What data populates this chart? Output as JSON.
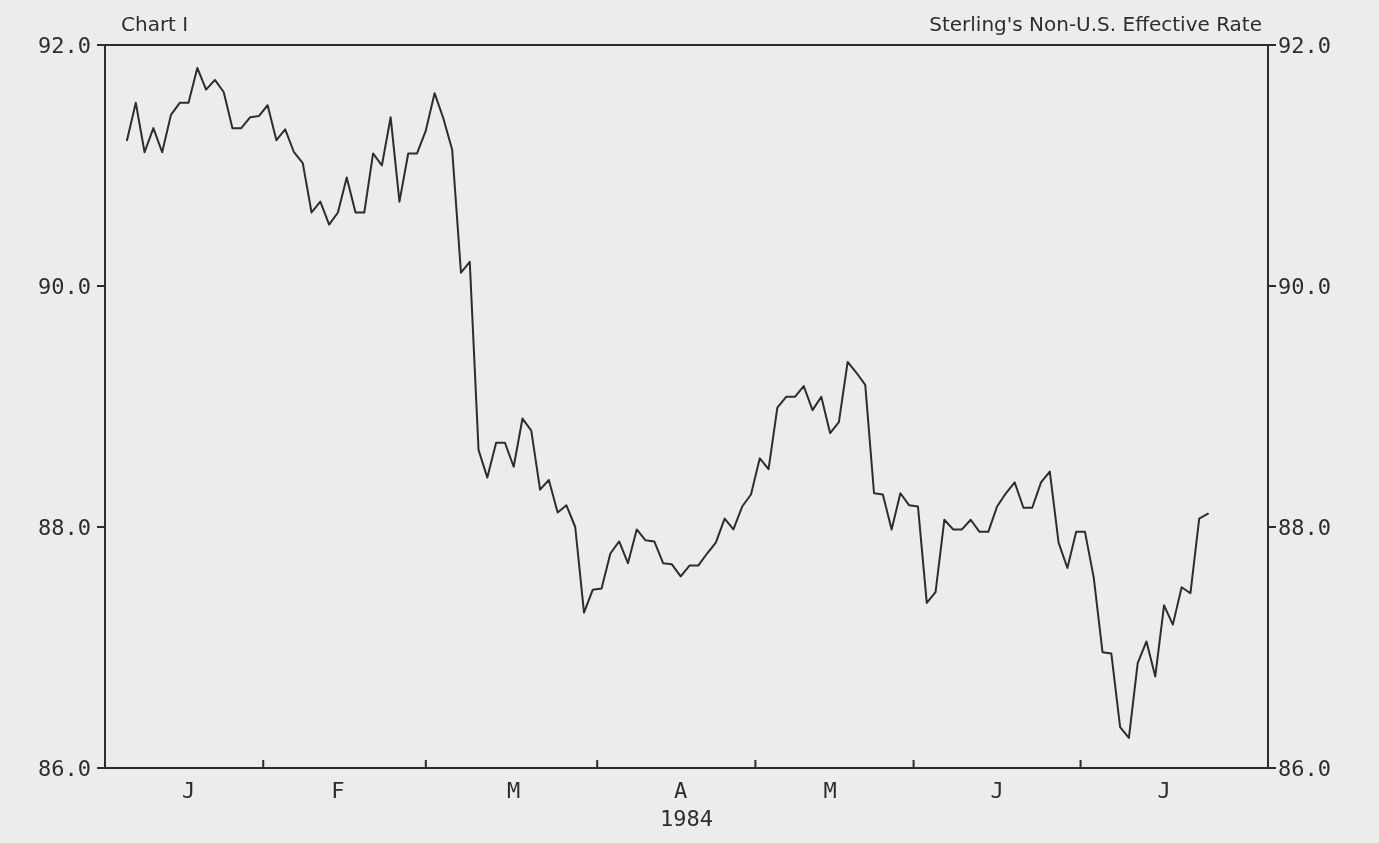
{
  "chart_data": {
    "type": "line",
    "title": "Sterling's Non-U.S. Effective Rate",
    "annotations": [
      "Chart I"
    ],
    "xlabel": "1984",
    "line_style": "solid",
    "categories": [
      null,
      null,
      null,
      null,
      null,
      null,
      null,
      "J",
      null,
      null,
      null,
      null,
      null,
      null,
      null,
      null,
      null,
      null,
      null,
      null,
      null,
      null,
      null,
      null,
      "F",
      null,
      null,
      null,
      null,
      null,
      null,
      null,
      null,
      null,
      null,
      null,
      null,
      null,
      null,
      null,
      null,
      null,
      null,
      null,
      "M",
      null,
      null,
      null,
      null,
      null,
      null,
      null,
      null,
      null,
      null,
      null,
      null,
      null,
      null,
      null,
      null,
      null,
      null,
      "A",
      null,
      null,
      null,
      null,
      null,
      null,
      null,
      null,
      null,
      null,
      null,
      null,
      null,
      null,
      null,
      null,
      "M",
      null,
      null,
      null,
      null,
      null,
      null,
      null,
      null,
      null,
      null,
      null,
      null,
      null,
      null,
      null,
      null,
      null,
      null,
      "J",
      null,
      null,
      null,
      null,
      null,
      null,
      null,
      null,
      null,
      null,
      null,
      null,
      null,
      null,
      null,
      null,
      null,
      null,
      "J",
      null,
      null,
      null,
      null,
      null
    ],
    "ylim": [
      86,
      92
    ],
    "yticks": [
      {
        "value": 86,
        "label": "86.0"
      },
      {
        "value": 88,
        "label": "88.0"
      },
      {
        "value": 90,
        "label": "90.0"
      },
      {
        "value": 92,
        "label": "92.0"
      }
    ],
    "y2lim": [
      86,
      92
    ],
    "y2ticks": [
      {
        "value": 86,
        "label": "86.0"
      },
      {
        "value": 88,
        "label": "88.0"
      },
      {
        "value": 90,
        "label": "90.0"
      },
      {
        "value": 92,
        "label": "92.0"
      }
    ],
    "series": [
      {
        "color": "#2a2f2c",
        "values": [
          91.21,
          91.52,
          91.11,
          91.31,
          91.11,
          91.42,
          91.52,
          91.52,
          91.81,
          91.63,
          91.71,
          91.61,
          91.31,
          91.31,
          91.4,
          91.41,
          91.5,
          91.21,
          91.3,
          91.11,
          91.02,
          90.61,
          90.7,
          90.51,
          90.61,
          90.9,
          90.61,
          90.61,
          91.1,
          91.0,
          91.4,
          90.7,
          91.1,
          91.1,
          91.29,
          91.6,
          91.39,
          91.13,
          90.11,
          90.2,
          88.64,
          88.41,
          88.7,
          88.7,
          88.5,
          88.9,
          88.8,
          88.31,
          88.39,
          88.12,
          88.18,
          88.0,
          87.29,
          87.48,
          87.49,
          87.78,
          87.88,
          87.7,
          87.98,
          87.89,
          87.88,
          87.7,
          87.69,
          87.59,
          87.68,
          87.68,
          87.78,
          87.87,
          88.07,
          87.98,
          88.17,
          88.27,
          88.57,
          88.48,
          88.99,
          89.08,
          89.08,
          89.17,
          88.97,
          89.08,
          88.78,
          88.87,
          89.37,
          89.28,
          89.18,
          88.28,
          88.27,
          87.98,
          88.28,
          88.18,
          88.17,
          87.37,
          87.46,
          88.06,
          87.98,
          87.98,
          88.06,
          87.96,
          87.96,
          88.17,
          88.28,
          88.37,
          88.16,
          88.16,
          88.37,
          88.46,
          87.87,
          87.66,
          87.96,
          87.96,
          87.58,
          86.96,
          86.95,
          86.34,
          86.25,
          86.87,
          87.05,
          86.76,
          87.35,
          87.19,
          87.5,
          87.45,
          88.07,
          88.11
        ]
      }
    ]
  }
}
